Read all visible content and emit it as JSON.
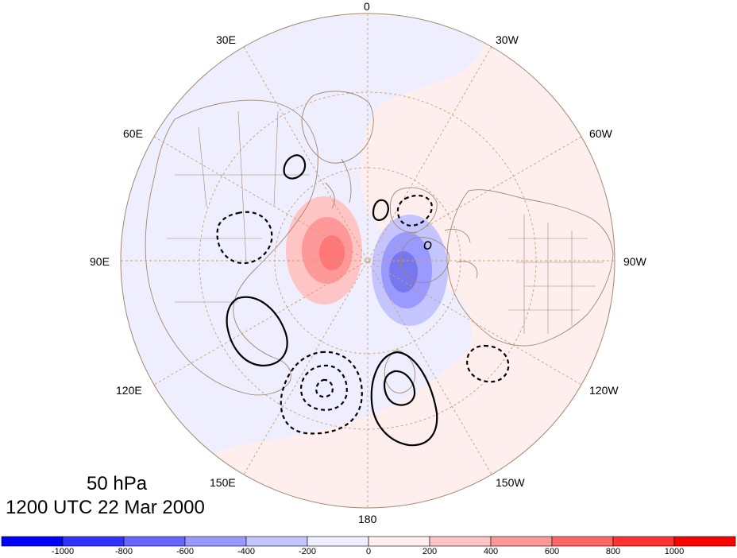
{
  "title": {
    "level": "50 hPa",
    "time": "1200 UTC 22 Mar 2000"
  },
  "longitude_labels": {
    "n0": "0",
    "e30": "30E",
    "w30": "30W",
    "e60": "60E",
    "w60": "60W",
    "e90": "90E",
    "w90": "90W",
    "e120": "120E",
    "w120": "120W",
    "e150": "150E",
    "w150": "150W",
    "s180": "180"
  },
  "colorbar": {
    "ticks": [
      "-1000",
      "-800",
      "-600",
      "-400",
      "-200",
      "0",
      "200",
      "400",
      "600",
      "800",
      "1000"
    ],
    "colors": [
      "#0000ff",
      "#3333ff",
      "#6666ff",
      "#9999ff",
      "#c4c4ff",
      "#eeeeff",
      "#ffeeee",
      "#ffc4c4",
      "#ff9999",
      "#ff6666",
      "#ff3333",
      "#ff0000"
    ]
  },
  "colors": {
    "coastline": "#a08870",
    "graticule": "#c8a070",
    "positive_fill": "#ffeeee",
    "negative_fill": "#eeeeff",
    "contour": "#000000"
  }
}
